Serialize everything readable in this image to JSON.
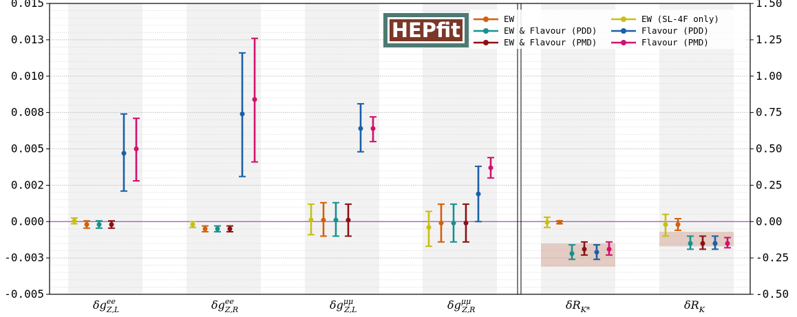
{
  "chart_data": {
    "type": "scatter",
    "subtype": "errorbar",
    "logo": "HEPfit",
    "colors": {
      "EW": "#d45f0a",
      "EW & Flavour (PDD)": "#17908f",
      "EW & Flavour (PMD)": "#8b1013",
      "EW (SL-4F only)": "#c9bf10",
      "Flavour (PDD)": "#1a5fa8",
      "Flavour (PMD)": "#d2106d"
    },
    "left_axis": {
      "ylim": [
        -0.005,
        0.015
      ],
      "ticks": [
        -0.005,
        -0.0025,
        0.0,
        0.0025,
        0.005,
        0.0075,
        0.01,
        0.0125,
        0.015
      ],
      "tick_labels": [
        "-0.005",
        "-0.003",
        "0.000",
        "0.002",
        "0.005",
        "0.008",
        "0.010",
        "0.013",
        "0.015"
      ]
    },
    "right_axis": {
      "ylim": [
        -0.5,
        1.5
      ],
      "ticks": [
        -0.5,
        -0.25,
        0.0,
        0.25,
        0.5,
        0.75,
        1.0,
        1.25,
        1.5
      ],
      "tick_labels": [
        "-0.50",
        "-0.25",
        "0.00",
        "0.25",
        "0.50",
        "0.75",
        "1.00",
        "1.25",
        "1.50"
      ]
    },
    "legend": {
      "placement": "top-right",
      "entries": [
        "EW",
        "EW & Flavour (PDD)",
        "EW & Flavour (PMD)",
        "EW (SL-4F only)",
        "Flavour (PDD)",
        "Flavour (PMD)"
      ]
    },
    "categories": [
      {
        "label": "δg^ee_{Z,L}",
        "main": "δg",
        "sup": "ee",
        "sub": "Z,L",
        "axis": "left",
        "points": [
          {
            "series": "EW (SL-4F only)",
            "y": 5e-05,
            "lo": -0.00015,
            "hi": 0.00025
          },
          {
            "series": "EW",
            "y": -0.0002,
            "lo": -0.00045,
            "hi": 5e-05
          },
          {
            "series": "EW & Flavour (PDD)",
            "y": -0.0002,
            "lo": -0.00045,
            "hi": 5e-05
          },
          {
            "series": "EW & Flavour (PMD)",
            "y": -0.0002,
            "lo": -0.00045,
            "hi": 5e-05
          },
          {
            "series": "Flavour (PDD)",
            "y": 0.0047,
            "lo": 0.0021,
            "hi": 0.0074
          },
          {
            "series": "Flavour (PMD)",
            "y": 0.005,
            "lo": 0.0028,
            "hi": 0.0071
          }
        ]
      },
      {
        "label": "δg^ee_{Z,R}",
        "main": "δg",
        "sup": "ee",
        "sub": "Z,R",
        "axis": "left",
        "points": [
          {
            "series": "EW (SL-4F only)",
            "y": -0.0002,
            "lo": -0.0004,
            "hi": 0.0
          },
          {
            "series": "EW",
            "y": -0.0005,
            "lo": -0.0007,
            "hi": -0.0003
          },
          {
            "series": "EW & Flavour (PDD)",
            "y": -0.0005,
            "lo": -0.0007,
            "hi": -0.0003
          },
          {
            "series": "EW & Flavour (PMD)",
            "y": -0.0005,
            "lo": -0.0007,
            "hi": -0.0003
          },
          {
            "series": "Flavour (PDD)",
            "y": 0.0074,
            "lo": 0.0031,
            "hi": 0.0116
          },
          {
            "series": "Flavour (PMD)",
            "y": 0.0084,
            "lo": 0.0041,
            "hi": 0.0126
          }
        ]
      },
      {
        "label": "δg^μμ_{Z,L}",
        "main": "δg",
        "sup": "μμ",
        "sub": "Z,L",
        "axis": "left",
        "points": [
          {
            "series": "EW (SL-4F only)",
            "y": 0.0001,
            "lo": -0.0009,
            "hi": 0.0012
          },
          {
            "series": "EW",
            "y": 0.0001,
            "lo": -0.001,
            "hi": 0.0013
          },
          {
            "series": "EW & Flavour (PDD)",
            "y": 0.0001,
            "lo": -0.001,
            "hi": 0.0013
          },
          {
            "series": "EW & Flavour (PMD)",
            "y": 0.0001,
            "lo": -0.001,
            "hi": 0.0012
          },
          {
            "series": "Flavour (PDD)",
            "y": 0.0064,
            "lo": 0.0048,
            "hi": 0.0081
          },
          {
            "series": "Flavour (PMD)",
            "y": 0.0064,
            "lo": 0.0055,
            "hi": 0.0072
          }
        ]
      },
      {
        "label": "δg^μμ_{Z,R}",
        "main": "δg",
        "sup": "μμ",
        "sub": "Z,R",
        "axis": "left",
        "points": [
          {
            "series": "EW (SL-4F only)",
            "y": -0.0004,
            "lo": -0.0017,
            "hi": 0.0007
          },
          {
            "series": "EW",
            "y": -0.0001,
            "lo": -0.0014,
            "hi": 0.0012
          },
          {
            "series": "EW & Flavour (PDD)",
            "y": -0.0001,
            "lo": -0.0014,
            "hi": 0.0012
          },
          {
            "series": "EW & Flavour (PMD)",
            "y": -0.0001,
            "lo": -0.0014,
            "hi": 0.0012
          },
          {
            "series": "Flavour (PDD)",
            "y": 0.0019,
            "lo": 0.0,
            "hi": 0.0038
          },
          {
            "series": "Flavour (PMD)",
            "y": 0.0037,
            "lo": 0.003,
            "hi": 0.0044
          }
        ]
      },
      {
        "label": "δR_{K*}",
        "main": "δR",
        "sub": "K*",
        "axis": "right",
        "band": [
          -0.15,
          -0.31
        ],
        "points": [
          {
            "series": "EW (SL-4F only)",
            "y": -0.005,
            "lo": -0.04,
            "hi": 0.03
          },
          {
            "series": "EW",
            "y": -0.005,
            "lo": -0.015,
            "hi": 0.005
          },
          {
            "series": "EW & Flavour (PDD)",
            "y": -0.22,
            "lo": -0.26,
            "hi": -0.16
          },
          {
            "series": "EW & Flavour (PMD)",
            "y": -0.19,
            "lo": -0.23,
            "hi": -0.14
          },
          {
            "series": "Flavour (PDD)",
            "y": -0.21,
            "lo": -0.26,
            "hi": -0.16
          },
          {
            "series": "Flavour (PMD)",
            "y": -0.19,
            "lo": -0.23,
            "hi": -0.14
          }
        ]
      },
      {
        "label": "δR_K",
        "main": "δR",
        "sub": "K",
        "axis": "right",
        "band": [
          -0.07,
          -0.17
        ],
        "points": [
          {
            "series": "EW (SL-4F only)",
            "y": -0.02,
            "lo": -0.1,
            "hi": 0.05
          },
          {
            "series": "EW",
            "y": -0.02,
            "lo": -0.06,
            "hi": 0.02
          },
          {
            "series": "EW & Flavour (PDD)",
            "y": -0.15,
            "lo": -0.19,
            "hi": -0.1
          },
          {
            "series": "EW & Flavour (PMD)",
            "y": -0.15,
            "lo": -0.19,
            "hi": -0.1
          },
          {
            "series": "Flavour (PDD)",
            "y": -0.15,
            "lo": -0.19,
            "hi": -0.1
          },
          {
            "series": "Flavour (PMD)",
            "y": -0.15,
            "lo": -0.18,
            "hi": -0.11
          }
        ]
      }
    ]
  }
}
